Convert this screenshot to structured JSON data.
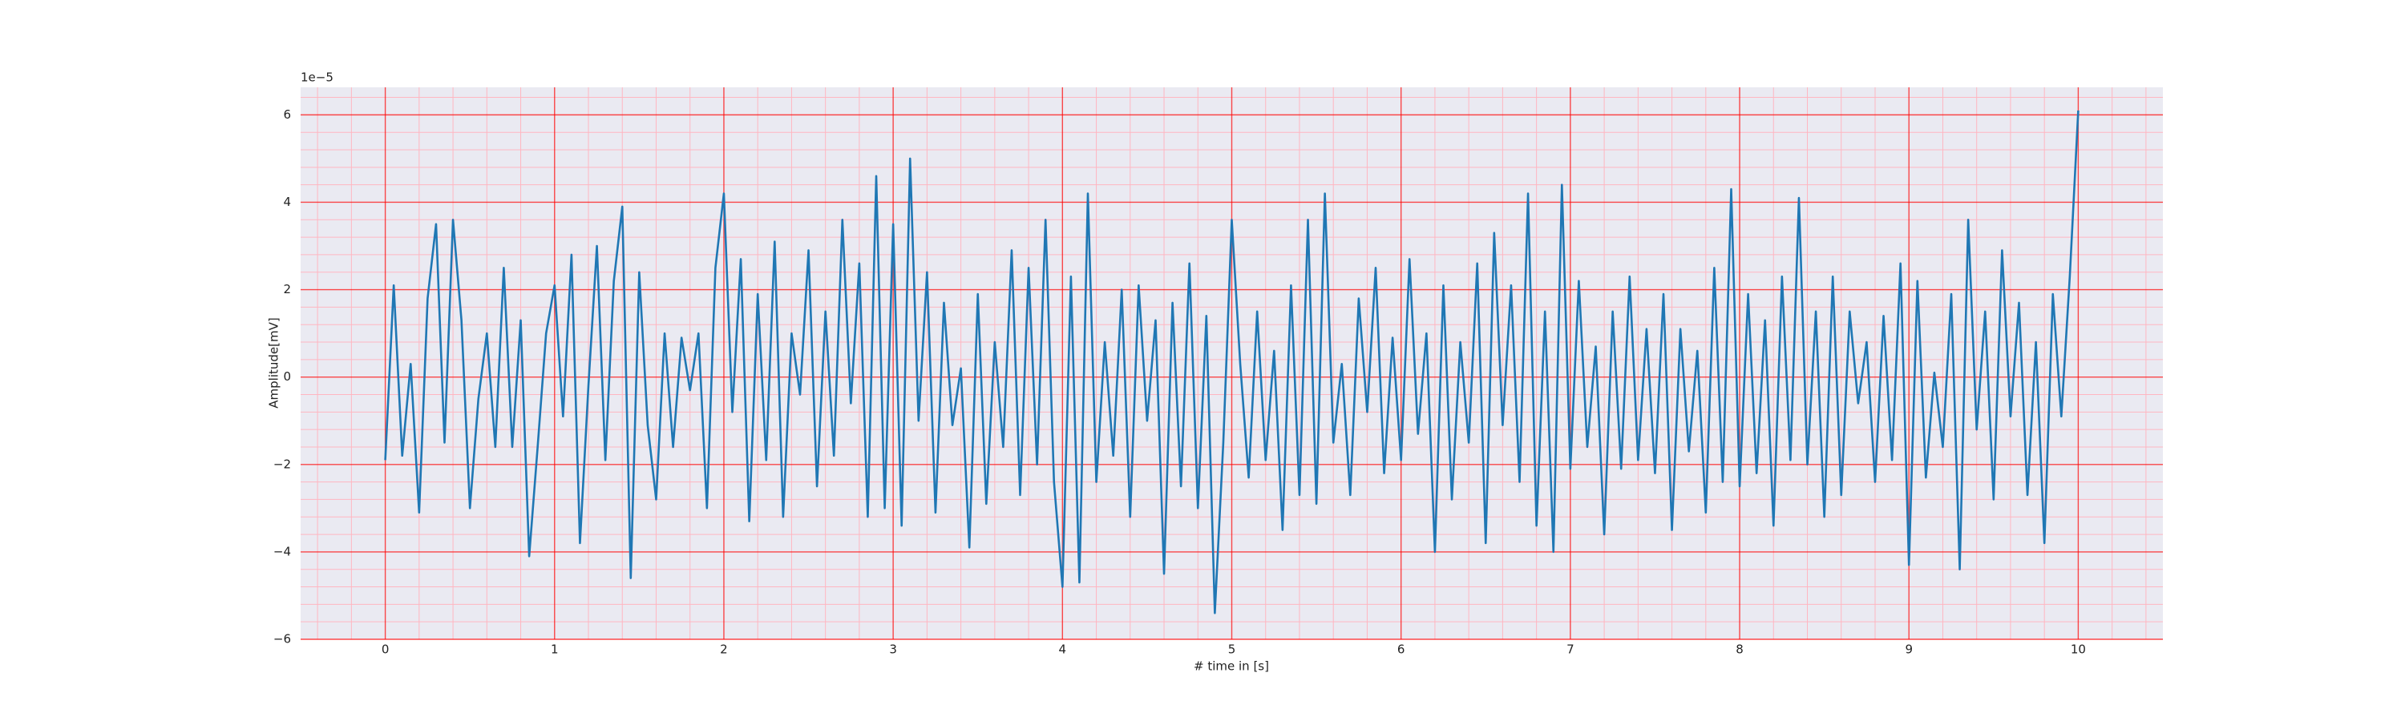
{
  "chart_data": {
    "type": "line",
    "xlabel": "# time in [s]",
    "ylabel": "Amplitude[mV]",
    "offset_text": "1e−5",
    "color": "#1f77b4",
    "background": "#eaeaf2",
    "grid": true,
    "grid_color": "#ff0000",
    "minor_grid_color": "#ffb6c1",
    "x": [
      0,
      0.05,
      0.1,
      0.15,
      0.2,
      0.25,
      0.3,
      0.35,
      0.4,
      0.45,
      0.5,
      0.55,
      0.6,
      0.65,
      0.7,
      0.75,
      0.8,
      0.85,
      0.9,
      0.95,
      1,
      1.05,
      1.1,
      1.15,
      1.2,
      1.25,
      1.3,
      1.35,
      1.4,
      1.45,
      1.5,
      1.55,
      1.6,
      1.65,
      1.7,
      1.75,
      1.8,
      1.85,
      1.9,
      1.95,
      2,
      2.05,
      2.1,
      2.15,
      2.2,
      2.25,
      2.3,
      2.35,
      2.4,
      2.45,
      2.5,
      2.55,
      2.6,
      2.65,
      2.7,
      2.75,
      2.8,
      2.85,
      2.9,
      2.95,
      3,
      3.05,
      3.1,
      3.15,
      3.2,
      3.25,
      3.3,
      3.35,
      3.4,
      3.45,
      3.5,
      3.55,
      3.6,
      3.65,
      3.7,
      3.75,
      3.8,
      3.85,
      3.9,
      3.95,
      4,
      4.05,
      4.1,
      4.15,
      4.2,
      4.25,
      4.3,
      4.35,
      4.4,
      4.45,
      4.5,
      4.55,
      4.6,
      4.65,
      4.7,
      4.75,
      4.8,
      4.85,
      4.9,
      4.95,
      5,
      5.05,
      5.1,
      5.15,
      5.2,
      5.25,
      5.3,
      5.35,
      5.4,
      5.45,
      5.5,
      5.55,
      5.6,
      5.65,
      5.7,
      5.75,
      5.8,
      5.85,
      5.9,
      5.95,
      6,
      6.05,
      6.1,
      6.15,
      6.2,
      6.25,
      6.3,
      6.35,
      6.4,
      6.45,
      6.5,
      6.55,
      6.6,
      6.65,
      6.7,
      6.75,
      6.8,
      6.85,
      6.9,
      6.95,
      7,
      7.05,
      7.1,
      7.15,
      7.2,
      7.25,
      7.3,
      7.35,
      7.4,
      7.45,
      7.5,
      7.55,
      7.6,
      7.65,
      7.7,
      7.75,
      7.8,
      7.85,
      7.9,
      7.95,
      8,
      8.05,
      8.1,
      8.15,
      8.2,
      8.25,
      8.3,
      8.35,
      8.4,
      8.45,
      8.5,
      8.55,
      8.6,
      8.65,
      8.7,
      8.75,
      8.8,
      8.85,
      8.9,
      8.95,
      9,
      9.05,
      9.1,
      9.15,
      9.2,
      9.25,
      9.3,
      9.35,
      9.4,
      9.45,
      9.5,
      9.55,
      9.6,
      9.65,
      9.7,
      9.75,
      9.8,
      9.85,
      9.9,
      9.95,
      10
    ],
    "values": [
      -1.9,
      2.1,
      -1.8,
      0.3,
      -3.1,
      1.8,
      3.5,
      -1.5,
      3.6,
      1.3,
      -3.0,
      -0.5,
      1.0,
      -1.6,
      2.5,
      -1.6,
      1.3,
      -4.1,
      -1.6,
      1.0,
      2.1,
      -0.9,
      2.8,
      -3.8,
      -0.2,
      3.0,
      -1.9,
      2.2,
      3.9,
      -4.6,
      2.4,
      -1.1,
      -2.8,
      1.0,
      -1.6,
      0.9,
      -0.3,
      1.0,
      -3.0,
      2.5,
      4.2,
      -0.8,
      2.7,
      -3.3,
      1.9,
      -1.9,
      3.1,
      -3.2,
      1.0,
      -0.4,
      2.9,
      -2.5,
      1.5,
      -1.8,
      3.6,
      -0.6,
      2.6,
      -3.2,
      4.6,
      -3.0,
      3.5,
      -3.4,
      5.0,
      -1.0,
      2.4,
      -3.1,
      1.7,
      -1.1,
      0.2,
      -3.9,
      1.9,
      -2.9,
      0.8,
      -1.6,
      2.9,
      -2.7,
      2.5,
      -2.0,
      3.6,
      -2.4,
      -4.8,
      2.3,
      -4.7,
      4.2,
      -2.4,
      0.8,
      -1.8,
      2.0,
      -3.2,
      2.1,
      -1.0,
      1.3,
      -4.5,
      1.7,
      -2.5,
      2.6,
      -3.0,
      1.4,
      -5.4,
      -1.5,
      3.6,
      0.3,
      -2.3,
      1.5,
      -1.9,
      0.6,
      -3.5,
      2.1,
      -2.7,
      3.6,
      -2.9,
      4.2,
      -1.5,
      0.3,
      -2.7,
      1.8,
      -0.8,
      2.5,
      -2.2,
      0.9,
      -1.9,
      2.7,
      -1.3,
      1.0,
      -4.0,
      2.1,
      -2.8,
      0.8,
      -1.5,
      2.6,
      -3.8,
      3.3,
      -1.1,
      2.1,
      -2.4,
      4.2,
      -3.4,
      1.5,
      -4.0,
      4.4,
      -2.1,
      2.2,
      -1.6,
      0.7,
      -3.6,
      1.5,
      -2.1,
      2.3,
      -1.9,
      1.1,
      -2.2,
      1.9,
      -3.5,
      1.1,
      -1.7,
      0.6,
      -3.1,
      2.5,
      -2.4,
      4.3,
      -2.5,
      1.9,
      -2.2,
      1.3,
      -3.4,
      2.3,
      -1.9,
      4.1,
      -2.0,
      1.5,
      -3.2,
      2.3,
      -2.7,
      1.5,
      -0.6,
      0.8,
      -2.4,
      1.4,
      -1.9,
      2.6,
      -4.3,
      2.2,
      -2.3,
      0.1,
      -1.6,
      1.9,
      -4.4,
      3.6,
      -1.2,
      1.5,
      -2.8,
      2.9,
      -0.9,
      1.7,
      -2.7,
      0.8,
      -3.8,
      1.9,
      -0.9,
      2.3,
      6.1
    ],
    "xlim": [
      -0.5,
      10.5
    ],
    "ylim": [
      -6,
      6.63
    ],
    "xticks": [
      0,
      1,
      2,
      3,
      4,
      5,
      6,
      7,
      8,
      9,
      10
    ],
    "yticks": [
      {
        "value": -6,
        "label": "−6"
      },
      {
        "value": -4,
        "label": "−4"
      },
      {
        "value": -2,
        "label": "−2"
      },
      0,
      2,
      4,
      6
    ],
    "xminorticks": [
      -0.4,
      -0.2,
      0.2,
      0.4,
      0.6,
      0.8,
      1.2,
      1.4,
      1.6,
      1.8,
      2.2,
      2.4,
      2.6,
      2.8,
      3.2,
      3.4,
      3.6,
      3.8,
      4.2,
      4.4,
      4.6,
      4.8,
      5.2,
      5.4,
      5.6,
      5.8,
      6.2,
      6.4,
      6.6,
      6.8,
      7.2,
      7.4,
      7.6,
      7.8,
      8.2,
      8.4,
      8.6,
      8.8,
      9.2,
      9.4,
      9.6,
      9.8,
      10.2,
      10.4
    ],
    "yminorticks": [
      -5.6,
      -5.2,
      -4.8,
      -4.4,
      -3.6,
      -3.2,
      -2.8,
      -2.4,
      -1.6,
      -1.2,
      -0.8,
      -0.4,
      0.4,
      0.8,
      1.2,
      1.6,
      2.4,
      2.8,
      3.2,
      3.6,
      4.4,
      4.8,
      5.2,
      5.6,
      6.4
    ]
  }
}
